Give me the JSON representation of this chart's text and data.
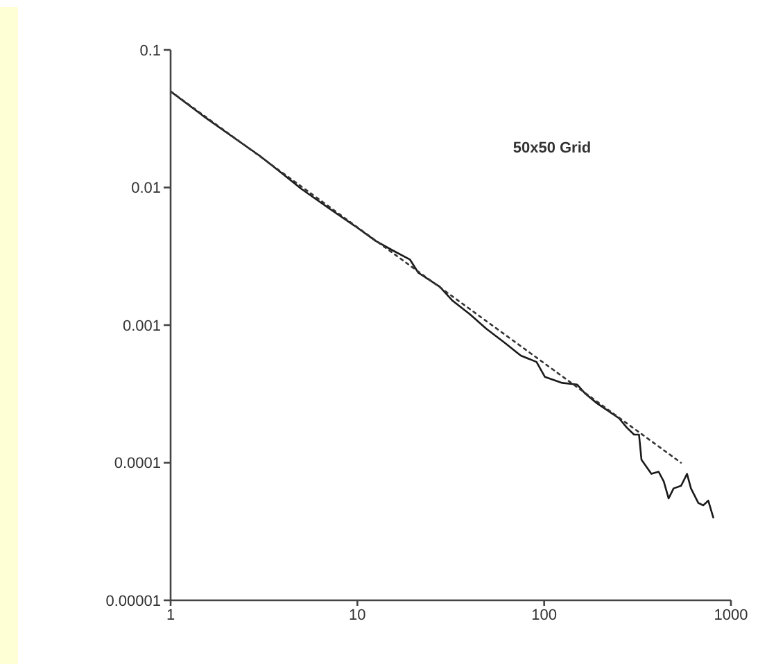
{
  "chart_data": {
    "type": "line",
    "log": "xy",
    "xlim": [
      1,
      1000
    ],
    "ylim": [
      1e-05,
      0.1
    ],
    "xticks": [
      1,
      10,
      100,
      1000
    ],
    "yticks": [
      {
        "value": 1e-05,
        "label": "0.00001"
      },
      0.0001,
      0.001,
      0.01,
      0.1
    ],
    "annotations": [
      "50x50 Grid"
    ],
    "series": [
      {
        "color": "#1a1a1a",
        "line_style": "solid",
        "x": [
          1,
          1.5,
          2,
          3,
          4,
          5,
          7,
          10,
          12.5,
          15.4,
          19.1,
          21.2,
          27.6,
          32.4,
          40,
          49,
          61,
          75,
          91,
          101,
          125,
          150,
          165,
          192,
          252,
          277,
          303,
          322,
          332,
          375,
          410,
          437,
          464,
          493,
          541,
          582,
          611,
          669,
          711,
          756,
          804
        ],
        "values": [
          0.05,
          0.033,
          0.025,
          0.017,
          0.0125,
          0.0098,
          0.0071,
          0.0051,
          0.0041,
          0.0035,
          0.003,
          0.0024,
          0.0019,
          0.0015,
          0.0012,
          0.00094,
          0.00075,
          0.0006,
          0.00054,
          0.00042,
          0.00038,
          0.00037,
          0.00032,
          0.00027,
          0.00021,
          0.00018,
          0.00016,
          0.00016,
          0.000105,
          8.3e-05,
          8.6e-05,
          7.3e-05,
          5.5e-05,
          6.5e-05,
          6.8e-05,
          8.3e-05,
          6.5e-05,
          5.1e-05,
          4.9e-05,
          5.3e-05,
          4e-05
        ]
      },
      {
        "type": "line",
        "color": "#333333",
        "line_style": "dotted",
        "x": [
          1,
          540
        ],
        "values": [
          0.05,
          0.0001
        ]
      }
    ]
  }
}
